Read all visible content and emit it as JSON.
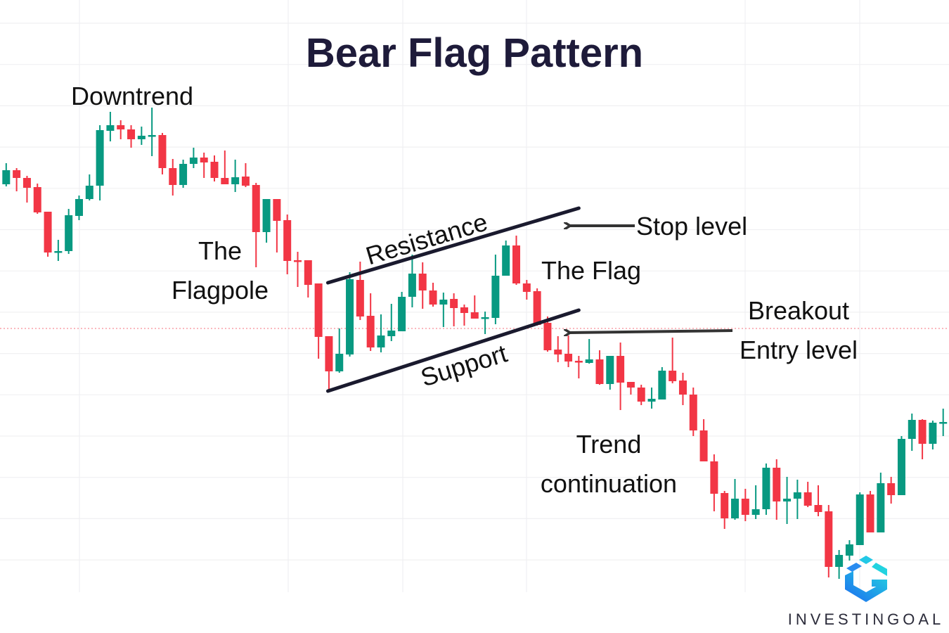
{
  "chart_data": {
    "type": "candlestick",
    "title": "Bear Flag Pattern",
    "xlabel": "",
    "ylabel": "",
    "grid": true,
    "colors": {
      "up": "#089981",
      "down": "#f23645",
      "title": "#1e1b3a",
      "trendline": "#1a1a2e",
      "arrow": "#333333",
      "reference_line": "#f23645"
    },
    "reference_line": {
      "price": 43.3,
      "style": "dotted"
    },
    "ylim": [
      0,
      90
    ],
    "candles": [
      [
        65.7,
        66.2,
        63.4,
        63.8
      ],
      [
        63.8,
        66.8,
        63.5,
        65.8
      ],
      [
        65.8,
        66.1,
        62.8,
        64.7
      ],
      [
        64.7,
        65.0,
        61.2,
        63.3
      ],
      [
        63.4,
        63.9,
        59.6,
        59.8
      ],
      [
        59.9,
        59.9,
        53.5,
        54.1
      ],
      [
        54.2,
        55.9,
        52.9,
        54.3
      ],
      [
        54.3,
        60.3,
        53.9,
        59.4
      ],
      [
        59.3,
        62.2,
        58.7,
        61.7
      ],
      [
        61.7,
        65.2,
        61.5,
        63.6
      ],
      [
        63.6,
        72.2,
        61.5,
        71.5
      ],
      [
        71.4,
        74.1,
        69.9,
        72.2
      ],
      [
        72.2,
        72.9,
        70.2,
        71.6
      ],
      [
        71.6,
        72.2,
        69.0,
        70.2
      ],
      [
        70.2,
        72.0,
        69.4,
        70.7
      ],
      [
        70.6,
        74.7,
        67.8,
        70.8
      ],
      [
        70.8,
        71.1,
        65.2,
        66.1
      ],
      [
        66.1,
        67.4,
        62.2,
        63.7
      ],
      [
        63.7,
        67.3,
        63.3,
        66.7
      ],
      [
        66.7,
        69.0,
        66.1,
        67.6
      ],
      [
        67.6,
        68.3,
        64.7,
        66.9
      ],
      [
        67.0,
        67.9,
        64.2,
        64.7
      ],
      [
        64.7,
        68.6,
        63.8,
        63.8
      ],
      [
        63.8,
        67.3,
        62.7,
        64.8
      ],
      [
        64.9,
        66.8,
        63.4,
        63.6
      ],
      [
        63.7,
        64.0,
        52.0,
        57.0
      ],
      [
        57.0,
        61.7,
        55.5,
        61.7
      ],
      [
        61.7,
        61.7,
        54.1,
        58.6
      ],
      [
        58.7,
        59.5,
        51.0,
        52.9
      ],
      [
        53.0,
        54.2,
        49.2,
        52.8
      ],
      [
        53.0,
        53.0,
        47.7,
        49.5
      ],
      [
        49.7,
        49.7,
        39.0,
        42.1
      ],
      [
        42.2,
        42.2,
        34.5,
        37.2
      ],
      [
        37.2,
        43.3,
        37.0,
        39.7
      ],
      [
        39.6,
        51.3,
        39.3,
        50.3
      ],
      [
        50.2,
        52.8,
        44.5,
        45.0
      ],
      [
        45.1,
        48.3,
        40.1,
        40.6
      ],
      [
        40.6,
        45.3,
        39.9,
        42.3
      ],
      [
        42.2,
        46.8,
        41.5,
        43.0
      ],
      [
        42.9,
        48.5,
        42.9,
        47.8
      ],
      [
        47.8,
        53.8,
        46.3,
        51.1
      ],
      [
        51.1,
        52.7,
        46.1,
        48.7
      ],
      [
        48.7,
        49.8,
        46.4,
        46.7
      ],
      [
        46.7,
        48.4,
        43.5,
        47.4
      ],
      [
        47.5,
        48.3,
        43.6,
        46.2
      ],
      [
        46.3,
        46.7,
        43.7,
        45.5
      ],
      [
        45.6,
        48.0,
        44.7,
        44.7
      ],
      [
        44.8,
        45.7,
        42.5,
        44.9
      ],
      [
        44.8,
        53.8,
        43.9,
        50.8
      ],
      [
        50.8,
        55.8,
        50.8,
        55.1
      ],
      [
        55.1,
        56.5,
        49.5,
        49.7
      ],
      [
        49.7,
        50.2,
        47.4,
        48.5
      ],
      [
        48.6,
        49.0,
        43.7,
        43.8
      ],
      [
        44.1,
        45.0,
        40.0,
        40.2
      ],
      [
        40.3,
        42.2,
        38.5,
        39.6
      ],
      [
        39.7,
        42.3,
        37.8,
        38.6
      ],
      [
        38.7,
        39.4,
        36.2,
        38.5
      ],
      [
        38.4,
        41.8,
        38.3,
        38.9
      ],
      [
        38.9,
        40.2,
        35.3,
        35.4
      ],
      [
        35.4,
        39.4,
        34.6,
        39.4
      ],
      [
        39.4,
        41.3,
        31.7,
        35.6
      ],
      [
        35.7,
        35.7,
        33.9,
        34.9
      ],
      [
        34.9,
        35.3,
        32.4,
        32.9
      ],
      [
        32.9,
        34.9,
        31.9,
        33.3
      ],
      [
        33.2,
        37.8,
        33.2,
        37.3
      ],
      [
        37.3,
        42.0,
        35.5,
        35.8
      ],
      [
        35.9,
        37.0,
        32.4,
        33.9
      ],
      [
        33.9,
        34.9,
        28.0,
        28.8
      ],
      [
        28.8,
        30.4,
        24.4,
        24.4
      ],
      [
        24.4,
        25.4,
        17.3,
        19.8
      ],
      [
        19.9,
        20.2,
        14.8,
        16.3
      ],
      [
        16.3,
        21.9,
        16.1,
        19.1
      ],
      [
        19.1,
        20.5,
        15.9,
        16.8
      ],
      [
        16.8,
        21.0,
        16.2,
        17.6
      ],
      [
        17.6,
        24.1,
        16.8,
        23.5
      ],
      [
        23.5,
        24.7,
        16.1,
        18.7
      ],
      [
        18.7,
        22.2,
        15.5,
        19.1
      ],
      [
        19.1,
        21.8,
        16.2,
        20.0
      ],
      [
        20.0,
        21.5,
        17.9,
        18.1
      ],
      [
        18.2,
        21.0,
        16.6,
        17.2
      ],
      [
        17.3,
        18.2,
        7.9,
        9.4
      ],
      [
        9.4,
        11.8,
        7.7,
        11.1
      ],
      [
        11.0,
        13.2,
        10.3,
        12.6
      ],
      [
        12.5,
        20.0,
        12.5,
        19.7
      ],
      [
        19.7,
        20.2,
        14.3,
        14.3
      ],
      [
        14.3,
        22.8,
        14.3,
        21.3
      ],
      [
        21.3,
        22.2,
        18.4,
        19.6
      ],
      [
        19.6,
        28.0,
        19.6,
        27.6
      ],
      [
        27.6,
        31.2,
        25.9,
        30.3
      ],
      [
        30.3,
        30.4,
        24.7,
        26.9
      ],
      [
        26.9,
        30.2,
        26.1,
        29.9
      ],
      [
        29.9,
        31.9,
        28.0,
        30.0
      ]
    ],
    "trendlines": [
      {
        "label": "Resistance",
        "from": [
          31.9,
          49.8
        ],
        "to": [
          56.0,
          60.4
        ]
      },
      {
        "label": "Support",
        "from": [
          31.9,
          34.4
        ],
        "to": [
          56.0,
          45.9
        ]
      }
    ],
    "annotations": {
      "downtrend": "Downtrend",
      "flagpole_1": "The",
      "flagpole_2": "Flagpole",
      "resistance": "Resistance",
      "support": "Support",
      "stop_level": "Stop level",
      "the_flag": "The Flag",
      "breakout_1": "Breakout",
      "breakout_2": "Entry level",
      "trend_1": "Trend",
      "trend_2": "continuation"
    }
  },
  "brand": {
    "name": "INVESTINGOAL",
    "logo_icon": "investingoal-hex-g-logo"
  }
}
